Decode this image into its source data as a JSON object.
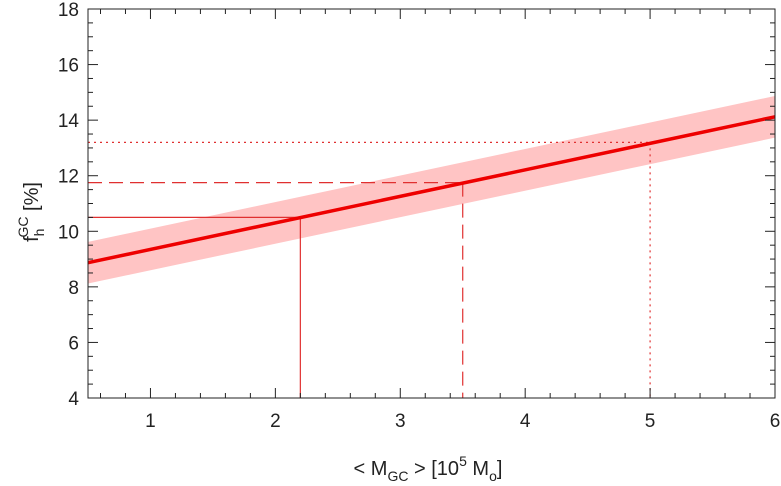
{
  "chart_data": {
    "type": "line",
    "xlabel": {
      "prefix": "< M",
      "sub": "GC",
      "mid": " >  [10",
      "sup": "5",
      "mid2": " M",
      "sub2": "o",
      "suffix": "]"
    },
    "ylabel": {
      "main": "f",
      "sub": "h",
      "sup": "GC",
      "suffix": " [%]"
    },
    "xlim": [
      0.5,
      6
    ],
    "ylim": [
      4,
      18
    ],
    "xticks": [
      1,
      2,
      3,
      4,
      5,
      6
    ],
    "yticks": [
      4,
      6,
      8,
      10,
      12,
      14,
      16,
      18
    ],
    "x_minor_step": 0.2,
    "y_minor_step": 0.5,
    "series": [
      {
        "style": "solid",
        "color": "#ee0000",
        "x": [
          0.5,
          6
        ],
        "y": [
          8.87,
          14.12
        ]
      }
    ],
    "band": {
      "color": "#ffc4c4",
      "x": [
        0.5,
        6
      ],
      "y_low": [
        8.12,
        13.37
      ],
      "y_high": [
        9.62,
        14.87
      ]
    },
    "markers": [
      {
        "style": "solid",
        "x": 2.2,
        "y": 10.5
      },
      {
        "style": "dashed",
        "x": 3.5,
        "y": 11.75
      },
      {
        "style": "dotted",
        "x": 5.0,
        "y": 13.2
      }
    ],
    "grid": false,
    "colors": {
      "line": "#ee0000",
      "band": "#ffc4c4",
      "guide": "#e03030",
      "axis": "#222222"
    }
  }
}
